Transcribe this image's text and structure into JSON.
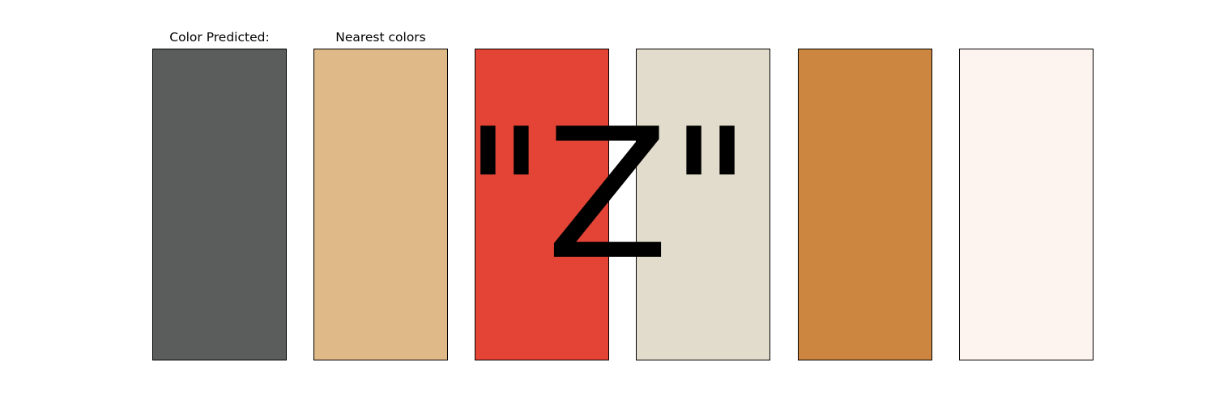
{
  "chart_data": {
    "type": "color-swatches",
    "predicted": {
      "title": "Color Predicted:",
      "color": "#5a5d5b"
    },
    "nearest": {
      "title": "Nearest colors",
      "colors": [
        "#dfb988",
        "#e44436",
        "#e1dccb",
        "#cd8640",
        "#fdf4f0"
      ]
    },
    "overlay_label": "\"Z\""
  }
}
